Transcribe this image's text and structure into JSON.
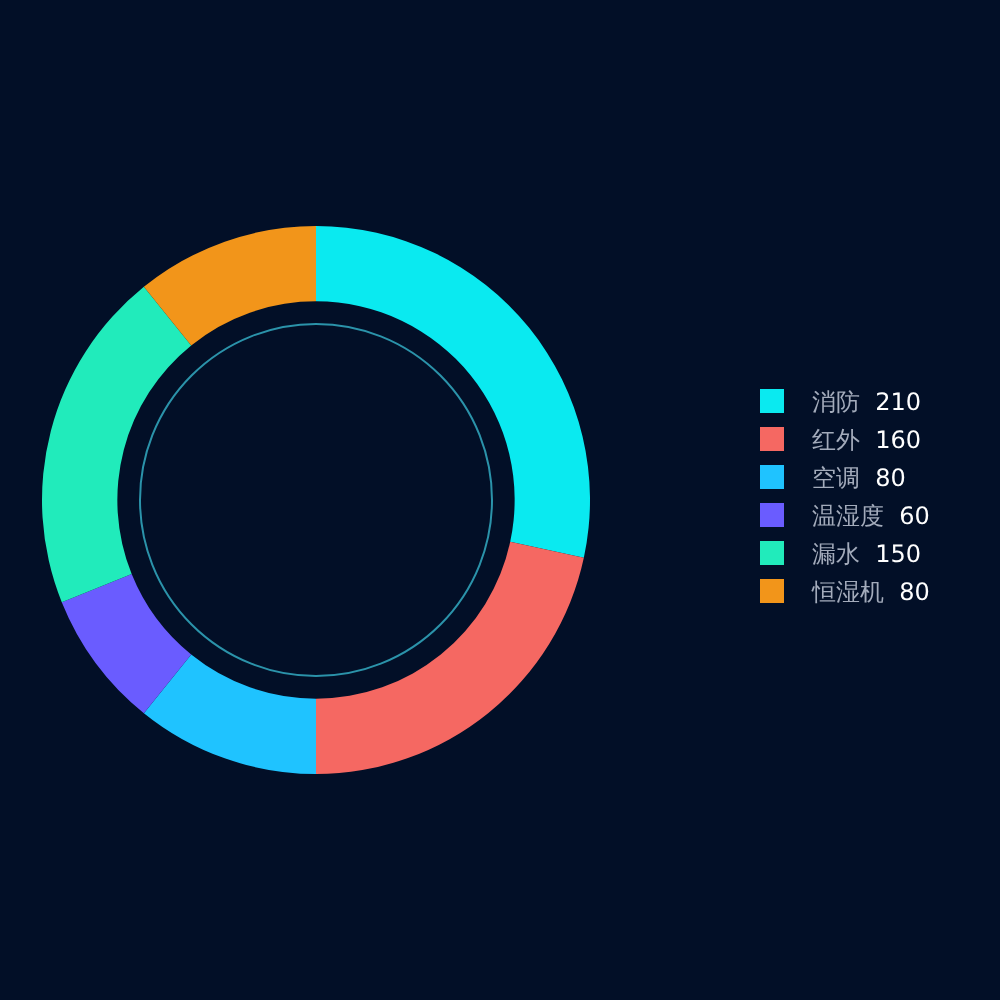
{
  "chart_data": {
    "type": "donut",
    "categories": [
      "消防",
      "红外",
      "空调",
      "温湿度",
      "漏水",
      "恒湿机"
    ],
    "values": [
      210,
      160,
      80,
      60,
      150,
      80
    ],
    "colors": [
      "#0aeaf0",
      "#f56862",
      "#1fc3ff",
      "#6a5cff",
      "#21ebbb",
      "#f2951a"
    ],
    "legend": "right",
    "data_labels": true
  }
}
